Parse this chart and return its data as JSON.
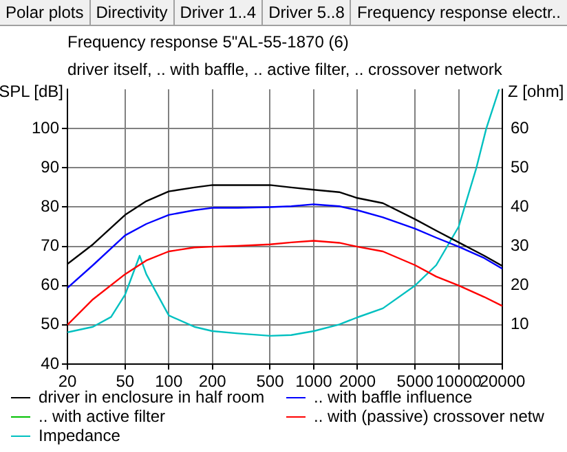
{
  "chart_data": {
    "type": "line",
    "title": "Frequency response 5\"AL-55-1870 (6)",
    "subtitle": "driver itself, .. with baffle, .. active filter, .. crossover network",
    "ylabel": "SPL [dB]",
    "y2label": "Z [ohm]",
    "annotations": [
      "Polar plots",
      "Directivity",
      "Driver 1..4",
      "Driver 5..8",
      "Frequency response electr.."
    ],
    "x": [
      20,
      30,
      50,
      70,
      100,
      150,
      200,
      300,
      500,
      700,
      1000,
      1500,
      2000,
      3000,
      5000,
      7000,
      10000,
      15000,
      20000
    ],
    "series": [
      {
        "name": "driver in enclosure in half room",
        "color": "#000000",
        "values": [
          65.5,
          70.5,
          78,
          81.5,
          84,
          85,
          85.6,
          85.6,
          85.6,
          85,
          84.4,
          83.8,
          82.3,
          81,
          76.9,
          74,
          71,
          67.6,
          65
        ]
      },
      {
        "name": ".. with baffle influence",
        "color": "#0000ff",
        "values": [
          59.4,
          65.2,
          72.8,
          75.7,
          78,
          79.2,
          79.8,
          79.8,
          80,
          80.2,
          80.7,
          80.2,
          79.2,
          77.4,
          74.5,
          72.2,
          69.9,
          67,
          64.3
        ]
      },
      {
        "name": ".. with active filter",
        "color": "#00c000",
        "values": [
          null,
          null,
          null,
          null,
          null,
          null,
          null,
          null,
          null,
          null,
          null,
          null,
          null,
          null,
          null,
          null,
          null,
          null,
          null
        ]
      },
      {
        "name": ".. with (passive) crossover netw",
        "color": "#ff0000",
        "values": [
          50,
          56.5,
          62.9,
          66.4,
          68.7,
          69.7,
          69.9,
          70.1,
          70.5,
          71,
          71.4,
          70.9,
          69.9,
          68.7,
          65.2,
          62.3,
          60,
          57.1,
          54.8
        ]
      },
      {
        "name": "Impedance",
        "color": "#00c0c0",
        "axis": "y2",
        "x": [
          20,
          30,
          40,
          50,
          63,
          70,
          100,
          150,
          200,
          300,
          500,
          700,
          1000,
          1500,
          2000,
          3000,
          5000,
          7000,
          10000,
          13250,
          15500,
          19000
        ],
        "values": [
          8.1,
          9.5,
          12,
          17.7,
          27.6,
          22.9,
          12.4,
          9.5,
          8.4,
          7.8,
          7.2,
          7.4,
          8.4,
          10.1,
          11.9,
          14.2,
          20,
          25.2,
          35,
          50,
          60,
          70
        ]
      }
    ],
    "log": "x",
    "xlim": [
      20,
      20000
    ],
    "xticks": [
      20,
      50,
      100,
      200,
      500,
      1000,
      2000,
      5000,
      10000,
      20000
    ],
    "ylim": [
      40,
      110
    ],
    "yticks": [
      40,
      50,
      60,
      70,
      80,
      90,
      100
    ],
    "y2lim": [
      0,
      70
    ],
    "y2ticks": [
      10,
      20,
      30,
      40,
      50,
      60
    ],
    "grid": true,
    "legend": "bottom",
    "marker": "none",
    "line_style": "solid"
  }
}
